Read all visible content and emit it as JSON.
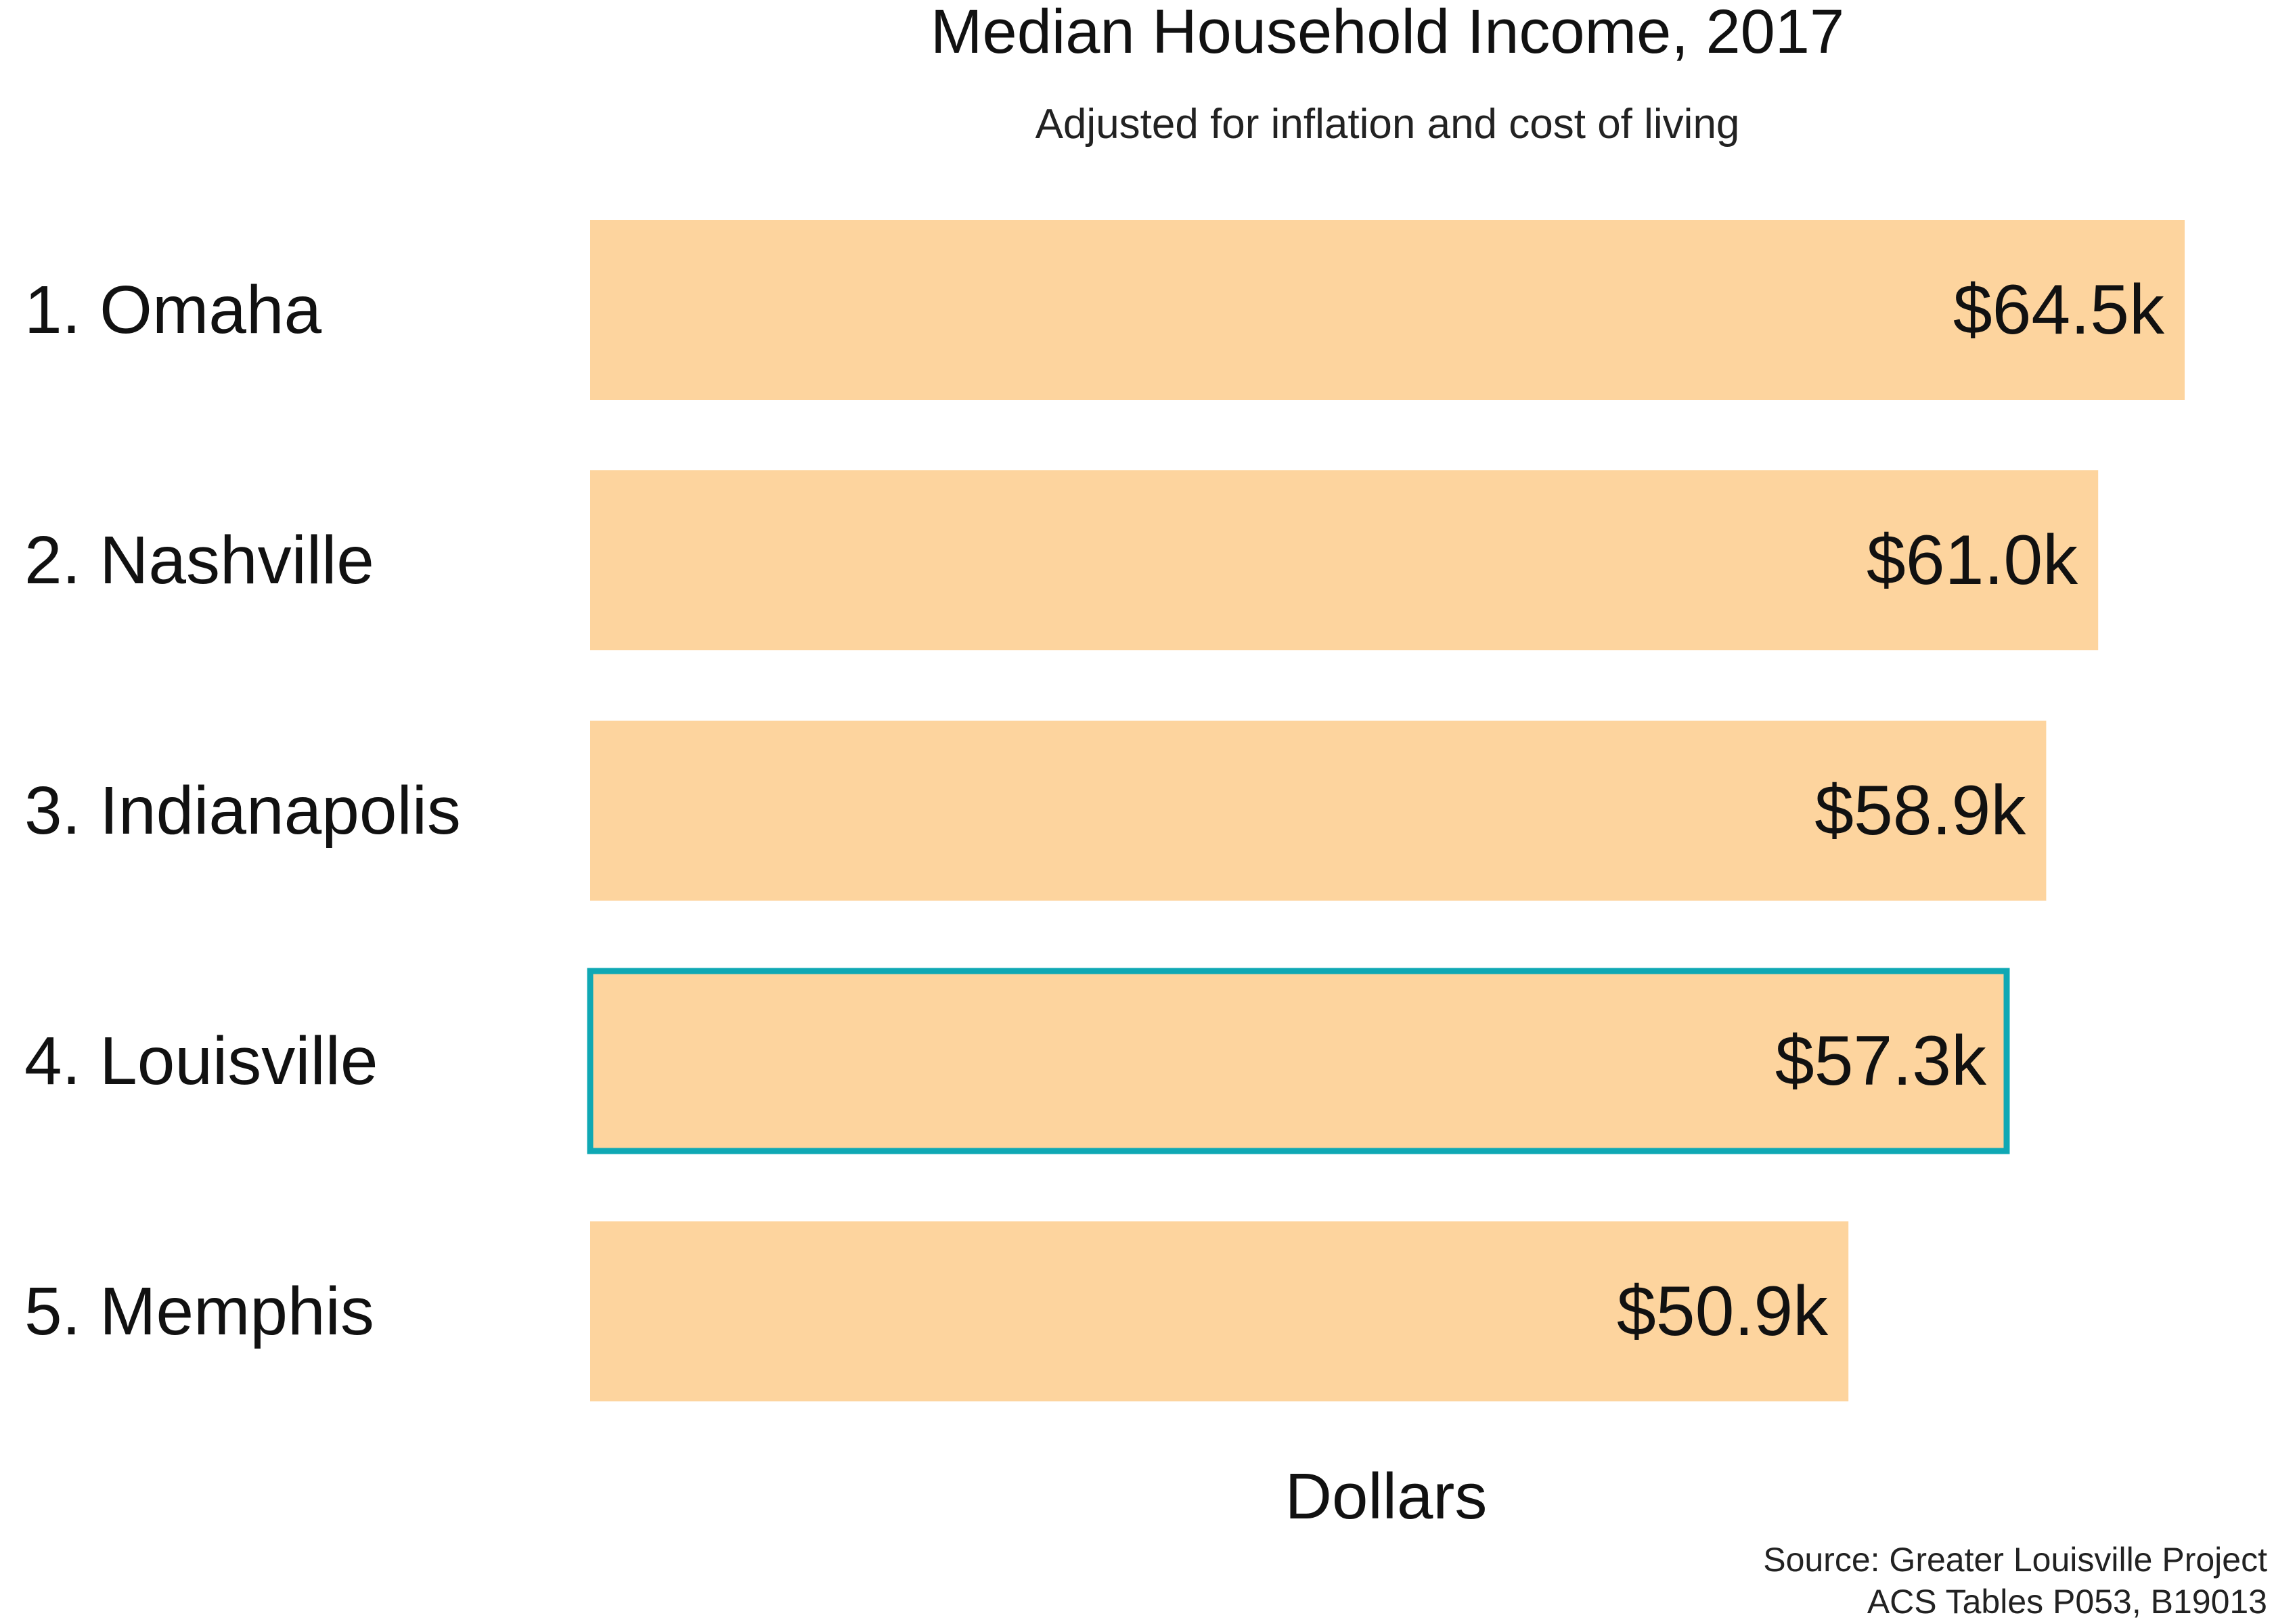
{
  "chart_data": {
    "type": "bar",
    "orientation": "horizontal",
    "title": "Median Household Income, 2017",
    "subtitle": "Adjusted for inflation and cost of living",
    "xlabel": "Dollars",
    "ylabel": "",
    "categories": [
      "1. Omaha",
      "2. Nashville",
      "3. Indianapolis",
      "4. Louisville",
      "5. Memphis"
    ],
    "values": [
      64.5,
      61.0,
      58.9,
      57.3,
      50.9
    ],
    "data_labels": [
      "$64.5k",
      "$61.0k",
      "$58.9k",
      "$57.3k",
      "$50.9k"
    ],
    "value_unit": "thousand dollars",
    "xlim": [
      0,
      64.5
    ],
    "grid": false,
    "highlight_index": 3,
    "colors": {
      "bar": "#FDD49E",
      "highlight": "#0FA8B4",
      "text": "#111111"
    },
    "source_lines": [
      "Source: Greater Louisville Project",
      "ACS Tables P053, B19013"
    ]
  }
}
